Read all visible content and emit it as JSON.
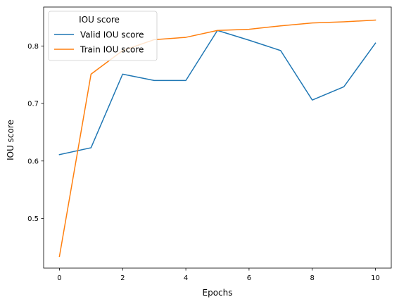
{
  "chart_data": {
    "type": "line",
    "title": "",
    "xlabel": "Epochs",
    "ylabel": "IOU score",
    "x": [
      0,
      1,
      2,
      3,
      4,
      5,
      6,
      7,
      8,
      9,
      10
    ],
    "xlim": [
      -0.5,
      10.5
    ],
    "ylim": [
      0.4137,
      0.8677
    ],
    "xticks": [
      0,
      2,
      4,
      6,
      8,
      10
    ],
    "yticks": [
      0.5,
      0.6,
      0.7,
      0.8
    ],
    "xtick_labels": [
      "0",
      "2",
      "4",
      "6",
      "8",
      "10"
    ],
    "ytick_labels": [
      "0.5",
      "0.6",
      "0.7",
      "0.8"
    ],
    "grid": false,
    "legend": {
      "title": "IOU score",
      "position": "top-left"
    },
    "series": [
      {
        "name": "Valid IOU score",
        "color": "#1f77b4",
        "values": [
          0.611,
          0.623,
          0.751,
          0.74,
          0.74,
          0.827,
          0.81,
          0.792,
          0.706,
          0.729,
          0.805
        ]
      },
      {
        "name": "Train IOU score",
        "color": "#ff7f0e",
        "values": [
          0.434,
          0.751,
          0.792,
          0.811,
          0.815,
          0.827,
          0.829,
          0.835,
          0.84,
          0.842,
          0.845
        ]
      }
    ]
  }
}
